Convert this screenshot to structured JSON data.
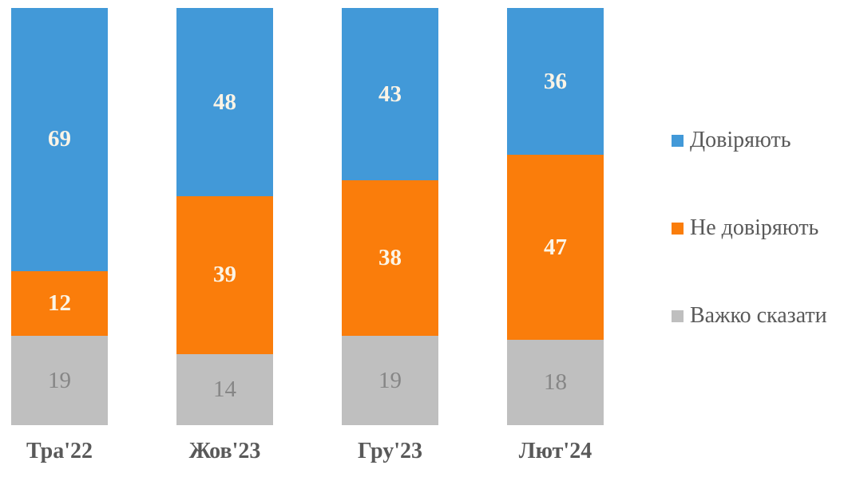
{
  "chart_data": {
    "type": "bar",
    "stacked": true,
    "orientation": "vertical",
    "categories": [
      "Тра'22",
      "Жов'23",
      "Гру'23",
      "Лют'24"
    ],
    "series": [
      {
        "name": "Довіряють",
        "values": [
          69,
          48,
          43,
          36
        ],
        "color": "#4299d8",
        "label_color": "#fbf4e6",
        "label_bold": true
      },
      {
        "name": "Не довіряють",
        "values": [
          12,
          39,
          38,
          47
        ],
        "color": "#fa7d0b",
        "label_color": "#fbf4e6",
        "label_bold": true
      },
      {
        "name": "Важко сказати",
        "values": [
          19,
          14,
          19,
          18
        ],
        "color": "#bfbfbf",
        "label_color": "#868686",
        "label_bold": false
      }
    ],
    "title": "",
    "xlabel": "",
    "ylabel": "",
    "ylim": [
      0,
      100
    ],
    "grid": false,
    "axis_lines": false,
    "legend_position": "right",
    "axis_label_color": "#595959",
    "legend_text_color": "#595959",
    "background_color": "#ffffff"
  }
}
